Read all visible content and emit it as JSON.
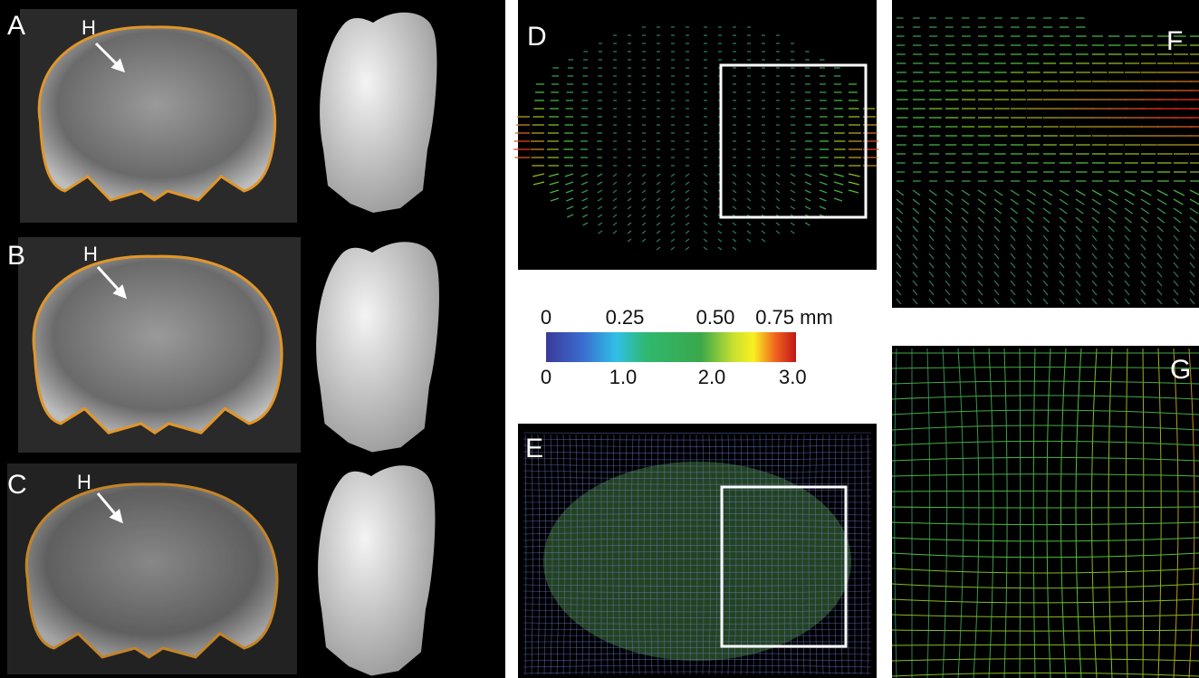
{
  "panels": {
    "A": "A",
    "B": "B",
    "C": "C",
    "D": "D",
    "E": "E",
    "F": "F",
    "G": "G"
  },
  "arrow_labels": [
    "H",
    "H",
    "H"
  ],
  "colorbar": {
    "top_labels": [
      "0",
      "0.25",
      "0.50",
      "0.75 mm"
    ],
    "bottom_labels": [
      "0",
      "1.0",
      "2.0",
      "3.0"
    ]
  }
}
